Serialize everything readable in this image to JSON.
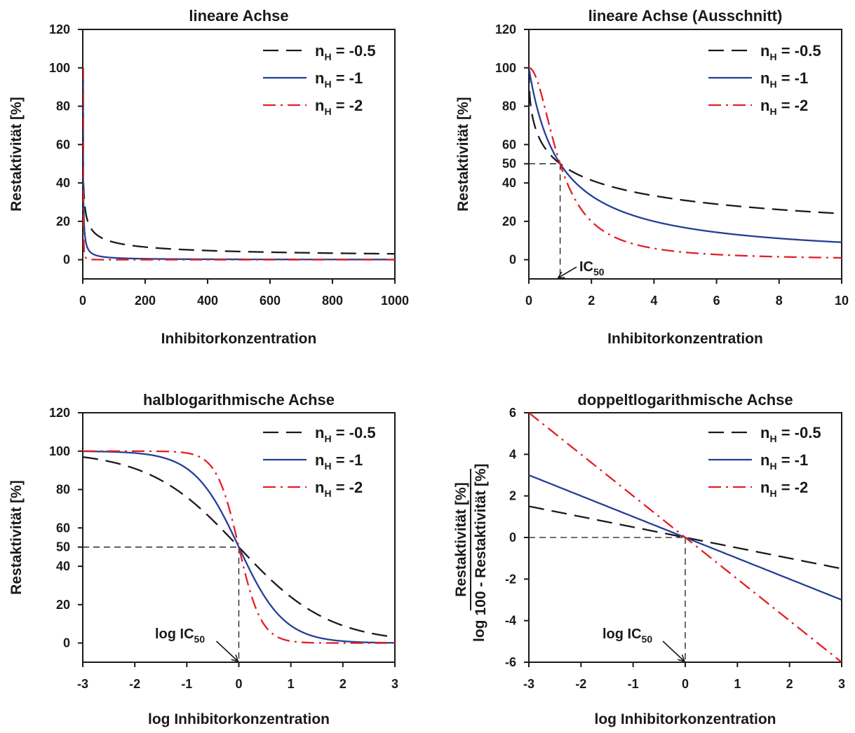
{
  "legend": {
    "entries": [
      {
        "base": "n",
        "sub": "H",
        "rest": " = -0.5"
      },
      {
        "base": "n",
        "sub": "H",
        "rest": " = -1"
      },
      {
        "base": "n",
        "sub": "H",
        "rest": " = -2"
      }
    ]
  },
  "styles": {
    "colors": [
      "#1a1a1a",
      "#233f97",
      "#e41f26"
    ],
    "dashes": [
      "22,11",
      "",
      "18,7,3,7"
    ]
  },
  "chart_data": [
    {
      "type": "line",
      "title": "lineare Achse",
      "xlabel": "Inhibitorkonzentration",
      "ylabel": "Restaktivität [%]",
      "xlim": [
        0,
        1000
      ],
      "ylim": [
        -10,
        120
      ],
      "xticks": [
        0,
        200,
        400,
        600,
        800,
        1000
      ],
      "yticks": [
        0,
        20,
        40,
        60,
        80,
        100,
        120
      ],
      "formula": "100 / (1 + x^(-n_H))",
      "xscale": "linear",
      "series": [
        {
          "name": "nH = -0.5",
          "n": 0.5
        },
        {
          "name": "nH = -1",
          "n": 1
        },
        {
          "name": "nH = -2",
          "n": 2
        }
      ]
    },
    {
      "type": "line",
      "title": "lineare Achse (Ausschnitt)",
      "xlabel": "Inhibitorkonzentration",
      "ylabel": "Restaktivität [%]",
      "xlim": [
        0,
        10
      ],
      "ylim": [
        -10,
        120
      ],
      "xticks": [
        0,
        2,
        4,
        6,
        8,
        10
      ],
      "yticks": [
        0,
        20,
        40,
        50,
        60,
        80,
        100,
        120
      ],
      "formula": "100 / (1 + x^(-n_H))",
      "xscale": "linear",
      "series": [
        {
          "name": "nH = -0.5",
          "n": 0.5
        },
        {
          "name": "nH = -1",
          "n": 1
        },
        {
          "name": "nH = -2",
          "n": 2
        }
      ],
      "guide": {
        "x": 1,
        "y": 50
      },
      "annotation": {
        "base": "IC",
        "sub": "50"
      }
    },
    {
      "type": "line",
      "title": "halblogarithmische Achse",
      "xlabel": "log Inhibitorkonzentration",
      "ylabel": "Restaktivität [%]",
      "xlim": [
        -3,
        3
      ],
      "ylim": [
        -10,
        120
      ],
      "xticks": [
        -3,
        -2,
        -1,
        0,
        1,
        2,
        3
      ],
      "yticks": [
        0,
        20,
        40,
        50,
        60,
        80,
        100,
        120
      ],
      "formula": "100 / (1 + 10^(x·(-n_H)))",
      "xscale": "log10 of concentration",
      "series": [
        {
          "name": "nH = -0.5",
          "n": 0.5
        },
        {
          "name": "nH = -1",
          "n": 1
        },
        {
          "name": "nH = -2",
          "n": 2
        }
      ],
      "guide": {
        "x": 0,
        "y": 50
      },
      "annotation": {
        "base": "log IC",
        "sub": "50"
      }
    },
    {
      "type": "line",
      "title": "doppeltlogarithmische Achse",
      "xlabel": "log Inhibitorkonzentration",
      "ylabel_prefix": "log",
      "ylabel_numerator": "Restaktivität [%]",
      "ylabel_denominator": "100 - Restaktivität [%]",
      "xlim": [
        -3,
        3
      ],
      "ylim": [
        -6,
        6
      ],
      "xticks": [
        -3,
        -2,
        -1,
        0,
        1,
        2,
        3
      ],
      "yticks": [
        -6,
        -4,
        -2,
        0,
        2,
        4,
        6
      ],
      "formula": "y = n_H · x",
      "xscale": "log10 of concentration",
      "series": [
        {
          "name": "nH = -0.5",
          "slope": -0.5
        },
        {
          "name": "nH = -1",
          "slope": -1
        },
        {
          "name": "nH = -2",
          "slope": -2
        }
      ],
      "guide": {
        "x": 0,
        "y": 0
      },
      "annotation": {
        "base": "log IC",
        "sub": "50"
      }
    }
  ]
}
